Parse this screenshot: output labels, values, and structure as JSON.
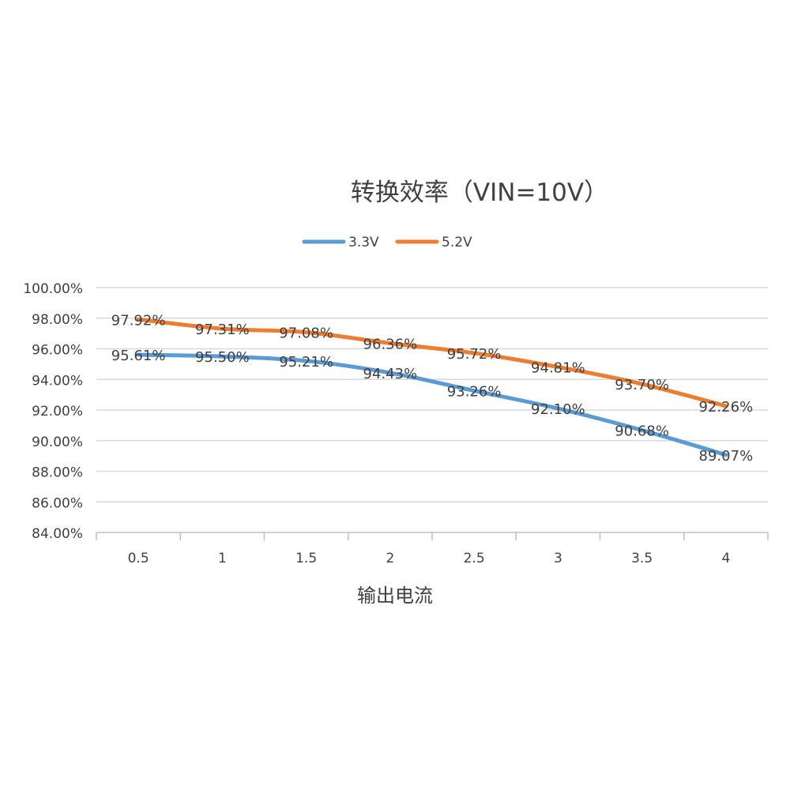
{
  "chart_data": {
    "type": "line",
    "title": "转换效率（VIN=10V）",
    "xlabel": "输出电流",
    "ylabel": "",
    "categories": [
      "0.5",
      "1",
      "1.5",
      "2",
      "2.5",
      "3",
      "3.5",
      "4"
    ],
    "ylim": [
      84,
      100
    ],
    "yticks": [
      "84.00%",
      "86.00%",
      "88.00%",
      "90.00%",
      "92.00%",
      "94.00%",
      "96.00%",
      "98.00%",
      "100.00%"
    ],
    "ytick_values": [
      84,
      86,
      88,
      90,
      92,
      94,
      96,
      98,
      100
    ],
    "grid": true,
    "legend": "top-center",
    "smooth": true,
    "series": [
      {
        "name": "3.3V",
        "color": "#5B9BD5",
        "values": [
          95.61,
          95.5,
          95.21,
          94.43,
          93.26,
          92.1,
          90.68,
          89.07
        ],
        "labels": [
          "95.61%",
          "95.50%",
          "95.21%",
          "94.43%",
          "93.26%",
          "92.10%",
          "90.68%",
          "89.07%"
        ]
      },
      {
        "name": "5.2V",
        "color": "#ED7D31",
        "values": [
          97.92,
          97.31,
          97.08,
          96.36,
          95.72,
          94.81,
          93.7,
          92.26
        ],
        "labels": [
          "97.92%",
          "97.31%",
          "97.08%",
          "96.36%",
          "95.72%",
          "94.81%",
          "93.70%",
          "92.26%"
        ]
      }
    ]
  }
}
